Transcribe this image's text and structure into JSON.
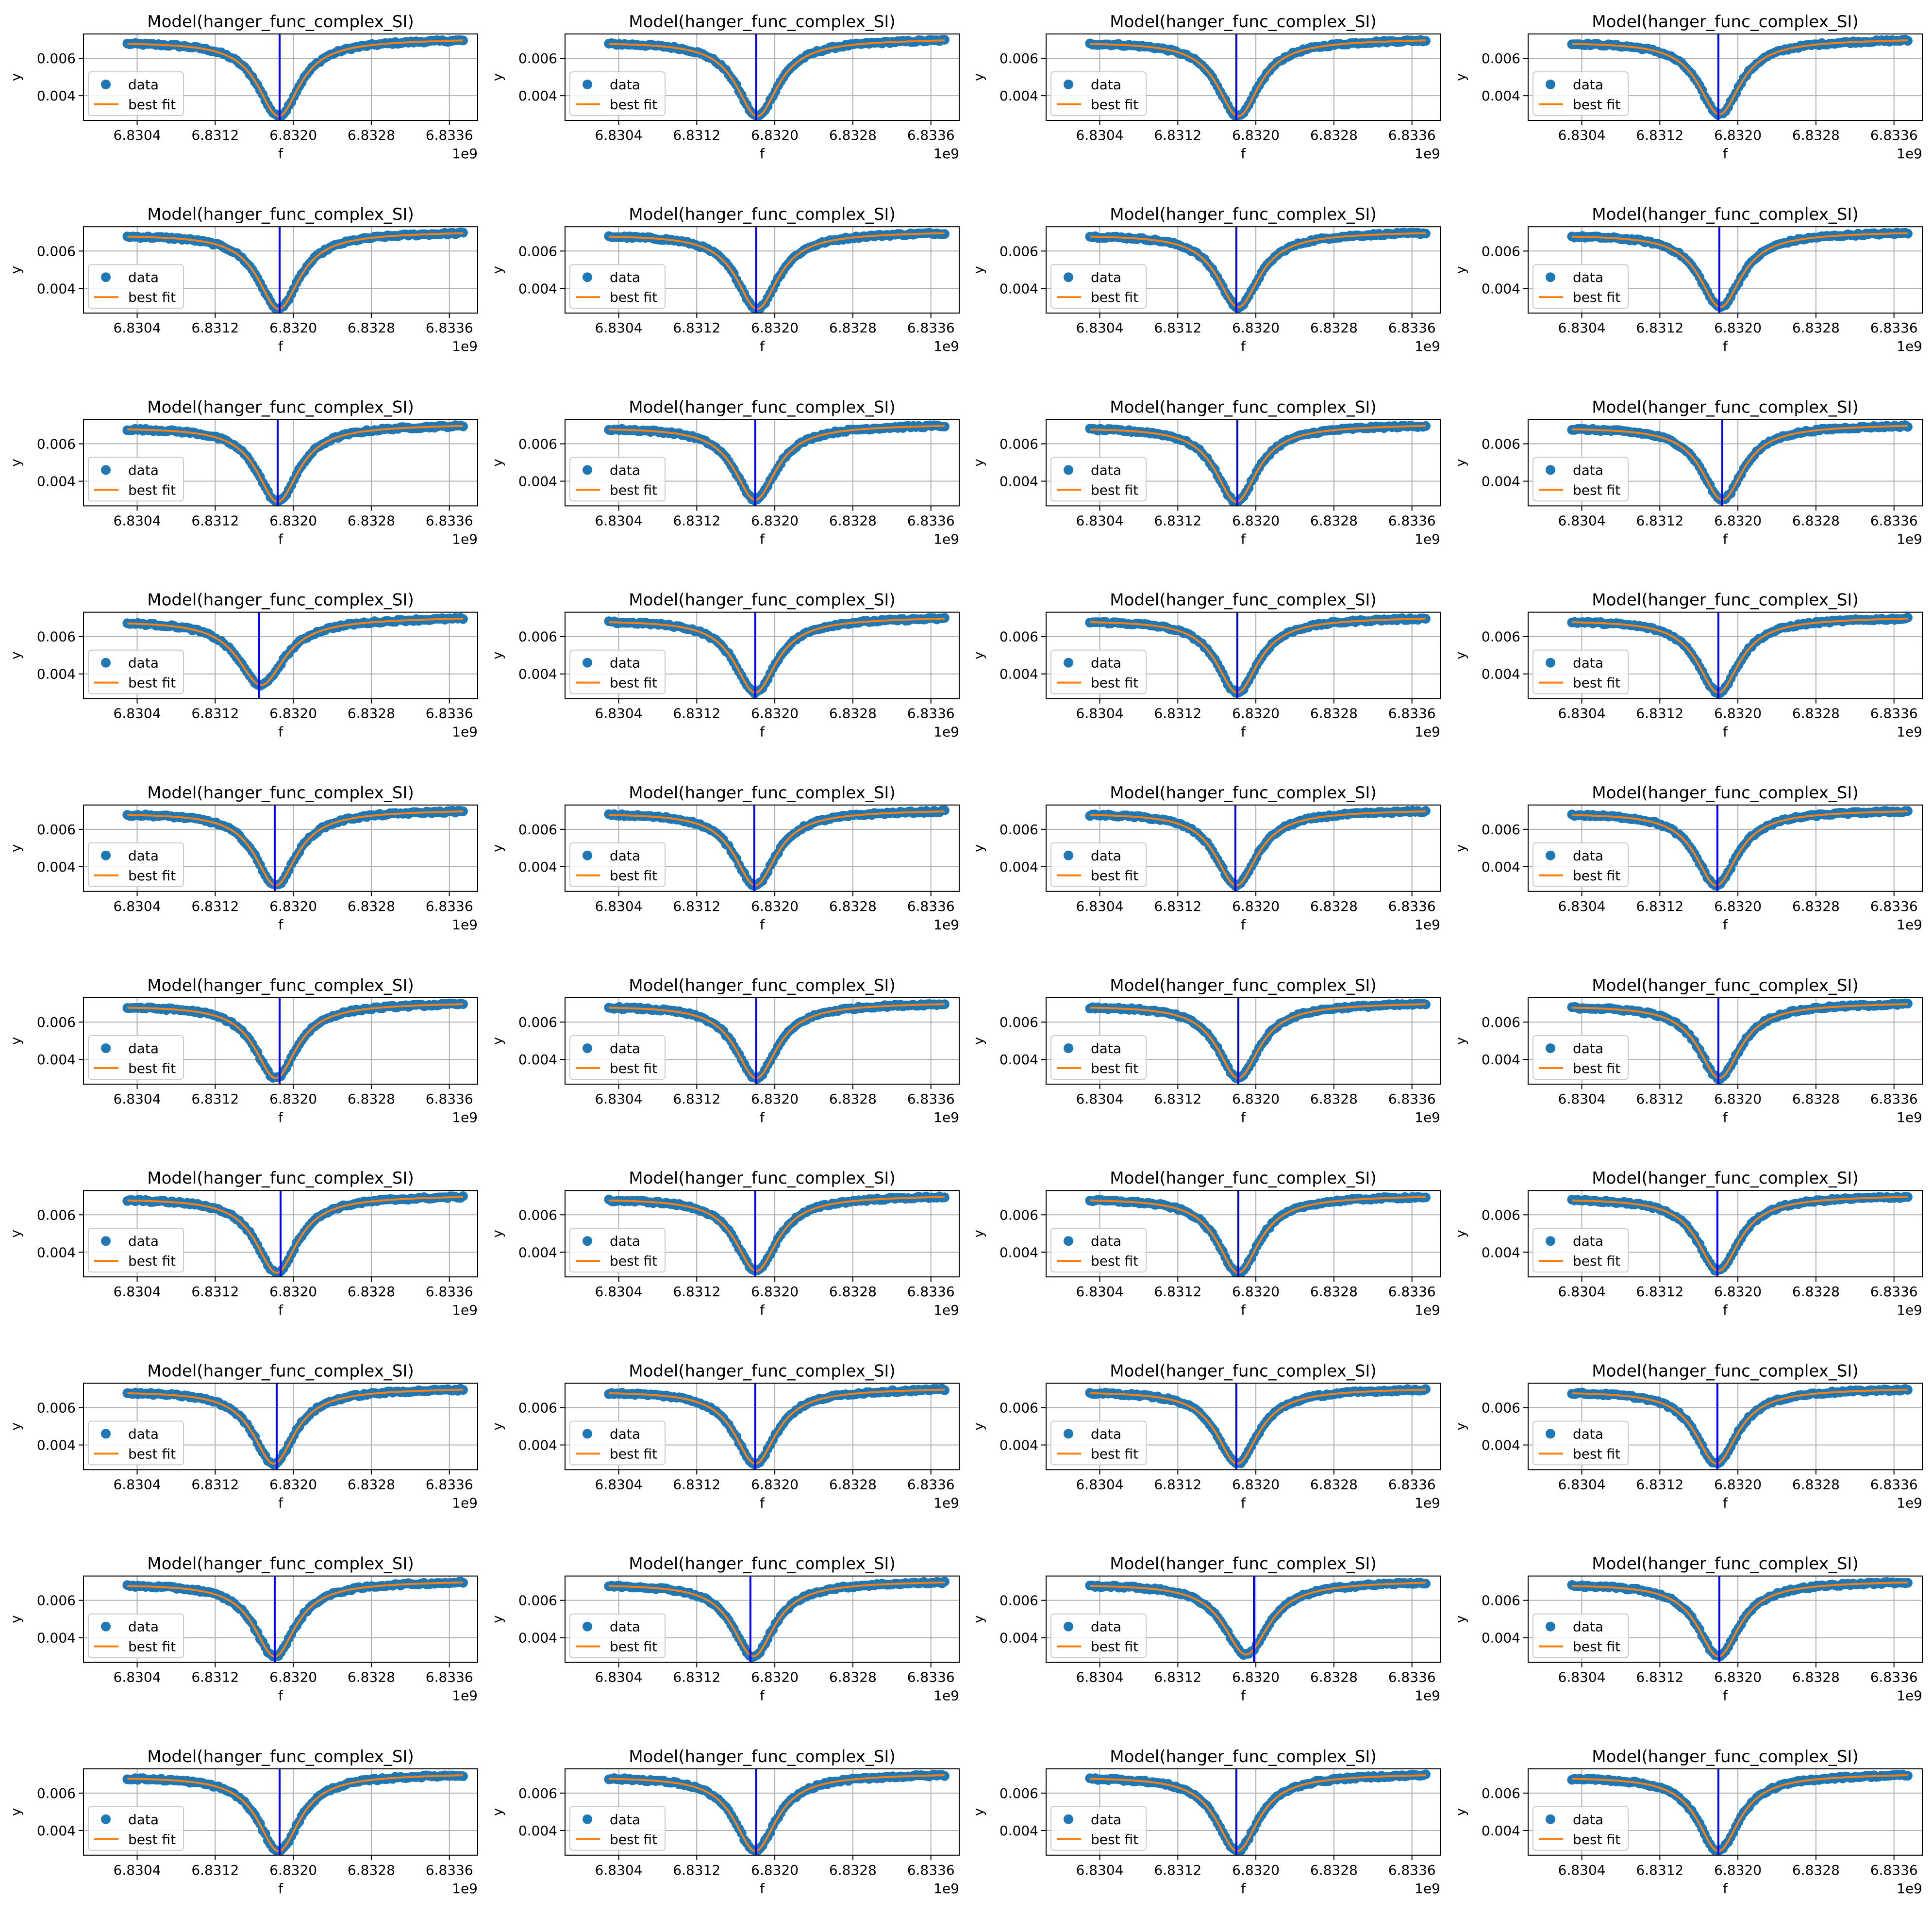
{
  "figure": {
    "rows": 10,
    "cols": 4
  },
  "styles": {
    "data_color": "#1f77b4",
    "fit_color": "#ff7f0e",
    "vline_color": "#0000ff",
    "grid_color": "#b0b0b0",
    "axes_color": "#000000"
  },
  "common": {
    "title": "Model(hanger_func_complex_SI)",
    "xlabel": "f",
    "ylabel": "y",
    "x_offset_label": "1e9",
    "legend": [
      "data",
      "best fit"
    ],
    "xticks": [
      6.8304,
      6.8312,
      6.832,
      6.8328,
      6.8336
    ],
    "xtick_labels": [
      "6.8304",
      "6.8312",
      "6.8320",
      "6.8328",
      "6.8336"
    ],
    "yticks": [
      0.004,
      0.006
    ],
    "ytick_labels": [
      "0.004",
      "0.006"
    ],
    "xlim": [
      6.82985,
      6.83389
    ],
    "ylim": [
      0.00268,
      0.0073
    ],
    "f_range": [
      6.8303,
      6.83374
    ],
    "n_points": 130
  },
  "chart_data": [
    {
      "type": "scatter+line",
      "title": "Model(hanger_func_complex_SI)",
      "xlabel": "f",
      "ylabel": "y",
      "series": [
        {
          "name": "data"
        },
        {
          "name": "best fit"
        }
      ],
      "f0": 6.83185,
      "fwhm": 0.00052,
      "min": 0.0029,
      "left": 0.00688,
      "right": 0.00703,
      "vline": 6.83186
    },
    {
      "type": "scatter+line",
      "title": "Model(hanger_func_complex_SI)",
      "xlabel": "f",
      "ylabel": "y",
      "series": [
        {
          "name": "data"
        },
        {
          "name": "best fit"
        }
      ],
      "f0": 6.83182,
      "fwhm": 0.00052,
      "min": 0.0029,
      "left": 0.00688,
      "right": 0.00703,
      "vline": 6.83181
    },
    {
      "type": "scatter+line",
      "title": "Model(hanger_func_complex_SI)",
      "xlabel": "f",
      "ylabel": "y",
      "series": [
        {
          "name": "data"
        },
        {
          "name": "best fit"
        }
      ],
      "f0": 6.83182,
      "fwhm": 0.00052,
      "min": 0.0029,
      "left": 0.00688,
      "right": 0.00703,
      "vline": 6.8318
    },
    {
      "type": "scatter+line",
      "title": "Model(hanger_func_complex_SI)",
      "xlabel": "f",
      "ylabel": "y",
      "series": [
        {
          "name": "data"
        },
        {
          "name": "best fit"
        }
      ],
      "f0": 6.83181,
      "fwhm": 0.00052,
      "min": 0.003,
      "left": 0.00688,
      "right": 0.00703,
      "vline": 6.8318
    },
    {
      "type": "scatter+line",
      "title": "Model(hanger_func_complex_SI)",
      "xlabel": "f",
      "ylabel": "y",
      "series": [
        {
          "name": "data"
        },
        {
          "name": "best fit"
        }
      ],
      "f0": 6.83185,
      "fwhm": 0.00052,
      "min": 0.0029,
      "left": 0.00688,
      "right": 0.00703,
      "vline": 6.83186
    },
    {
      "type": "scatter+line",
      "title": "Model(hanger_func_complex_SI)",
      "xlabel": "f",
      "ylabel": "y",
      "series": [
        {
          "name": "data"
        },
        {
          "name": "best fit"
        }
      ],
      "f0": 6.83182,
      "fwhm": 0.00052,
      "min": 0.0029,
      "left": 0.00688,
      "right": 0.00703,
      "vline": 6.83181
    },
    {
      "type": "scatter+line",
      "title": "Model(hanger_func_complex_SI)",
      "xlabel": "f",
      "ylabel": "y",
      "series": [
        {
          "name": "data"
        },
        {
          "name": "best fit"
        }
      ],
      "f0": 6.83182,
      "fwhm": 0.00052,
      "min": 0.003,
      "left": 0.00688,
      "right": 0.00703,
      "vline": 6.8318
    },
    {
      "type": "scatter+line",
      "title": "Model(hanger_func_complex_SI)",
      "xlabel": "f",
      "ylabel": "y",
      "series": [
        {
          "name": "data"
        },
        {
          "name": "best fit"
        }
      ],
      "f0": 6.83182,
      "fwhm": 0.00052,
      "min": 0.003,
      "left": 0.00688,
      "right": 0.00703,
      "vline": 6.83181
    },
    {
      "type": "scatter+line",
      "title": "Model(hanger_func_complex_SI)",
      "xlabel": "f",
      "ylabel": "y",
      "series": [
        {
          "name": "data"
        },
        {
          "name": "best fit"
        }
      ],
      "f0": 6.83184,
      "fwhm": 0.00052,
      "min": 0.0029,
      "left": 0.00688,
      "right": 0.00703,
      "vline": 6.83184
    },
    {
      "type": "scatter+line",
      "title": "Model(hanger_func_complex_SI)",
      "xlabel": "f",
      "ylabel": "y",
      "series": [
        {
          "name": "data"
        },
        {
          "name": "best fit"
        }
      ],
      "f0": 6.8318,
      "fwhm": 0.00052,
      "min": 0.003,
      "left": 0.00688,
      "right": 0.00703,
      "vline": 6.8318
    },
    {
      "type": "scatter+line",
      "title": "Model(hanger_func_complex_SI)",
      "xlabel": "f",
      "ylabel": "y",
      "series": [
        {
          "name": "data"
        },
        {
          "name": "best fit"
        }
      ],
      "f0": 6.8318,
      "fwhm": 0.00052,
      "min": 0.0029,
      "left": 0.00688,
      "right": 0.00703,
      "vline": 6.83181
    },
    {
      "type": "scatter+line",
      "title": "Model(hanger_func_complex_SI)",
      "xlabel": "f",
      "ylabel": "y",
      "series": [
        {
          "name": "data"
        },
        {
          "name": "best fit"
        }
      ],
      "f0": 6.83184,
      "fwhm": 0.00052,
      "min": 0.003,
      "left": 0.00688,
      "right": 0.00703,
      "vline": 6.83184
    },
    {
      "type": "scatter+line",
      "title": "Model(hanger_func_complex_SI)",
      "xlabel": "f",
      "ylabel": "y",
      "series": [
        {
          "name": "data"
        },
        {
          "name": "best fit"
        }
      ],
      "f0": 6.83167,
      "fwhm": 0.00058,
      "min": 0.0034,
      "left": 0.00685,
      "right": 0.00703,
      "vline": 6.83165
    },
    {
      "type": "scatter+line",
      "title": "Model(hanger_func_complex_SI)",
      "xlabel": "f",
      "ylabel": "y",
      "series": [
        {
          "name": "data"
        },
        {
          "name": "best fit"
        }
      ],
      "f0": 6.8318,
      "fwhm": 0.00052,
      "min": 0.003,
      "left": 0.00688,
      "right": 0.00703,
      "vline": 6.8318
    },
    {
      "type": "scatter+line",
      "title": "Model(hanger_func_complex_SI)",
      "xlabel": "f",
      "ylabel": "y",
      "series": [
        {
          "name": "data"
        },
        {
          "name": "best fit"
        }
      ],
      "f0": 6.83181,
      "fwhm": 0.00052,
      "min": 0.003,
      "left": 0.00688,
      "right": 0.00703,
      "vline": 6.83181
    },
    {
      "type": "scatter+line",
      "title": "Model(hanger_func_complex_SI)",
      "xlabel": "f",
      "ylabel": "y",
      "series": [
        {
          "name": "data"
        },
        {
          "name": "best fit"
        }
      ],
      "f0": 6.8318,
      "fwhm": 0.00052,
      "min": 0.003,
      "left": 0.00688,
      "right": 0.00703,
      "vline": 6.8318
    },
    {
      "type": "scatter+line",
      "title": "Model(hanger_func_complex_SI)",
      "xlabel": "f",
      "ylabel": "y",
      "series": [
        {
          "name": "data"
        },
        {
          "name": "best fit"
        }
      ],
      "f0": 6.83182,
      "fwhm": 0.00052,
      "min": 0.003,
      "left": 0.00688,
      "right": 0.00703,
      "vline": 6.83181
    },
    {
      "type": "scatter+line",
      "title": "Model(hanger_func_complex_SI)",
      "xlabel": "f",
      "ylabel": "y",
      "series": [
        {
          "name": "data"
        },
        {
          "name": "best fit"
        }
      ],
      "f0": 6.8318,
      "fwhm": 0.00052,
      "min": 0.003,
      "left": 0.00688,
      "right": 0.00703,
      "vline": 6.83179
    },
    {
      "type": "scatter+line",
      "title": "Model(hanger_func_complex_SI)",
      "xlabel": "f",
      "ylabel": "y",
      "series": [
        {
          "name": "data"
        },
        {
          "name": "best fit"
        }
      ],
      "f0": 6.8318,
      "fwhm": 0.00052,
      "min": 0.003,
      "left": 0.00688,
      "right": 0.00703,
      "vline": 6.83179
    },
    {
      "type": "scatter+line",
      "title": "Model(hanger_func_complex_SI)",
      "xlabel": "f",
      "ylabel": "y",
      "series": [
        {
          "name": "data"
        },
        {
          "name": "best fit"
        }
      ],
      "f0": 6.83178,
      "fwhm": 0.00052,
      "min": 0.003,
      "left": 0.00688,
      "right": 0.00703,
      "vline": 6.83179
    },
    {
      "type": "scatter+line",
      "title": "Model(hanger_func_complex_SI)",
      "xlabel": "f",
      "ylabel": "y",
      "series": [
        {
          "name": "data"
        },
        {
          "name": "best fit"
        }
      ],
      "f0": 6.83182,
      "fwhm": 0.00052,
      "min": 0.003,
      "left": 0.00688,
      "right": 0.00703,
      "vline": 6.83186
    },
    {
      "type": "scatter+line",
      "title": "Model(hanger_func_complex_SI)",
      "xlabel": "f",
      "ylabel": "y",
      "series": [
        {
          "name": "data"
        },
        {
          "name": "best fit"
        }
      ],
      "f0": 6.83181,
      "fwhm": 0.00052,
      "min": 0.003,
      "left": 0.00688,
      "right": 0.00703,
      "vline": 6.83181
    },
    {
      "type": "scatter+line",
      "title": "Model(hanger_func_complex_SI)",
      "xlabel": "f",
      "ylabel": "y",
      "series": [
        {
          "name": "data"
        },
        {
          "name": "best fit"
        }
      ],
      "f0": 6.83182,
      "fwhm": 0.00052,
      "min": 0.003,
      "left": 0.00688,
      "right": 0.00703,
      "vline": 6.83182
    },
    {
      "type": "scatter+line",
      "title": "Model(hanger_func_complex_SI)",
      "xlabel": "f",
      "ylabel": "y",
      "series": [
        {
          "name": "data"
        },
        {
          "name": "best fit"
        }
      ],
      "f0": 6.83181,
      "fwhm": 0.00052,
      "min": 0.003,
      "left": 0.00688,
      "right": 0.00703,
      "vline": 6.8318
    },
    {
      "type": "scatter+line",
      "title": "Model(hanger_func_complex_SI)",
      "xlabel": "f",
      "ylabel": "y",
      "series": [
        {
          "name": "data"
        },
        {
          "name": "best fit"
        }
      ],
      "f0": 6.83183,
      "fwhm": 0.00052,
      "min": 0.0029,
      "left": 0.00688,
      "right": 0.00703,
      "vline": 6.83187
    },
    {
      "type": "scatter+line",
      "title": "Model(hanger_func_complex_SI)",
      "xlabel": "f",
      "ylabel": "y",
      "series": [
        {
          "name": "data"
        },
        {
          "name": "best fit"
        }
      ],
      "f0": 6.83181,
      "fwhm": 0.00052,
      "min": 0.003,
      "left": 0.00688,
      "right": 0.00703,
      "vline": 6.8318
    },
    {
      "type": "scatter+line",
      "title": "Model(hanger_func_complex_SI)",
      "xlabel": "f",
      "ylabel": "y",
      "series": [
        {
          "name": "data"
        },
        {
          "name": "best fit"
        }
      ],
      "f0": 6.83182,
      "fwhm": 0.00052,
      "min": 0.0029,
      "left": 0.00688,
      "right": 0.00703,
      "vline": 6.83182
    },
    {
      "type": "scatter+line",
      "title": "Model(hanger_func_complex_SI)",
      "xlabel": "f",
      "ylabel": "y",
      "series": [
        {
          "name": "data"
        },
        {
          "name": "best fit"
        }
      ],
      "f0": 6.8318,
      "fwhm": 0.00052,
      "min": 0.003,
      "left": 0.00688,
      "right": 0.00703,
      "vline": 6.83179
    },
    {
      "type": "scatter+line",
      "title": "Model(hanger_func_complex_SI)",
      "xlabel": "f",
      "ylabel": "y",
      "series": [
        {
          "name": "data"
        },
        {
          "name": "best fit"
        }
      ],
      "f0": 6.8318,
      "fwhm": 0.00052,
      "min": 0.003,
      "left": 0.00688,
      "right": 0.00703,
      "vline": 6.83183
    },
    {
      "type": "scatter+line",
      "title": "Model(hanger_func_complex_SI)",
      "xlabel": "f",
      "ylabel": "y",
      "series": [
        {
          "name": "data"
        },
        {
          "name": "best fit"
        }
      ],
      "f0": 6.8318,
      "fwhm": 0.00052,
      "min": 0.003,
      "left": 0.00688,
      "right": 0.00703,
      "vline": 6.8318
    },
    {
      "type": "scatter+line",
      "title": "Model(hanger_func_complex_SI)",
      "xlabel": "f",
      "ylabel": "y",
      "series": [
        {
          "name": "data"
        },
        {
          "name": "best fit"
        }
      ],
      "f0": 6.83181,
      "fwhm": 0.00052,
      "min": 0.003,
      "left": 0.00688,
      "right": 0.00703,
      "vline": 6.8318
    },
    {
      "type": "scatter+line",
      "title": "Model(hanger_func_complex_SI)",
      "xlabel": "f",
      "ylabel": "y",
      "series": [
        {
          "name": "data"
        },
        {
          "name": "best fit"
        }
      ],
      "f0": 6.83178,
      "fwhm": 0.00052,
      "min": 0.003,
      "left": 0.00688,
      "right": 0.00703,
      "vline": 6.83179
    },
    {
      "type": "scatter+line",
      "title": "Model(hanger_func_complex_SI)",
      "xlabel": "f",
      "ylabel": "y",
      "series": [
        {
          "name": "data"
        },
        {
          "name": "best fit"
        }
      ],
      "f0": 6.83181,
      "fwhm": 0.00052,
      "min": 0.003,
      "left": 0.00688,
      "right": 0.00703,
      "vline": 6.83181
    },
    {
      "type": "scatter+line",
      "title": "Model(hanger_func_complex_SI)",
      "xlabel": "f",
      "ylabel": "y",
      "series": [
        {
          "name": "data"
        },
        {
          "name": "best fit"
        }
      ],
      "f0": 6.83178,
      "fwhm": 0.00052,
      "min": 0.003,
      "left": 0.00688,
      "right": 0.00703,
      "vline": 6.83175
    },
    {
      "type": "scatter+line",
      "title": "Model(hanger_func_complex_SI)",
      "xlabel": "f",
      "ylabel": "y",
      "series": [
        {
          "name": "data"
        },
        {
          "name": "best fit"
        }
      ],
      "f0": 6.8319,
      "fwhm": 0.00056,
      "min": 0.0031,
      "left": 0.00688,
      "right": 0.00703,
      "vline": 6.83198
    },
    {
      "type": "scatter+line",
      "title": "Model(hanger_func_complex_SI)",
      "xlabel": "f",
      "ylabel": "y",
      "series": [
        {
          "name": "data"
        },
        {
          "name": "best fit"
        }
      ],
      "f0": 6.8318,
      "fwhm": 0.00052,
      "min": 0.003,
      "left": 0.00688,
      "right": 0.00703,
      "vline": 6.83181
    },
    {
      "type": "scatter+line",
      "title": "Model(hanger_func_complex_SI)",
      "xlabel": "f",
      "ylabel": "y",
      "series": [
        {
          "name": "data"
        },
        {
          "name": "best fit"
        }
      ],
      "f0": 6.83185,
      "fwhm": 0.00052,
      "min": 0.0029,
      "left": 0.00688,
      "right": 0.00703,
      "vline": 6.83186
    },
    {
      "type": "scatter+line",
      "title": "Model(hanger_func_complex_SI)",
      "xlabel": "f",
      "ylabel": "y",
      "series": [
        {
          "name": "data"
        },
        {
          "name": "best fit"
        }
      ],
      "f0": 6.8318,
      "fwhm": 0.00052,
      "min": 0.0029,
      "left": 0.00688,
      "right": 0.00703,
      "vline": 6.83181
    },
    {
      "type": "scatter+line",
      "title": "Model(hanger_func_complex_SI)",
      "xlabel": "f",
      "ylabel": "y",
      "series": [
        {
          "name": "data"
        },
        {
          "name": "best fit"
        }
      ],
      "f0": 6.83181,
      "fwhm": 0.00052,
      "min": 0.0029,
      "left": 0.00688,
      "right": 0.00703,
      "vline": 6.8318
    },
    {
      "type": "scatter+line",
      "title": "Model(hanger_func_complex_SI)",
      "xlabel": "f",
      "ylabel": "y",
      "series": [
        {
          "name": "data"
        },
        {
          "name": "best fit"
        }
      ],
      "f0": 6.8318,
      "fwhm": 0.00052,
      "min": 0.0029,
      "left": 0.00688,
      "right": 0.00703,
      "vline": 6.8318
    }
  ]
}
